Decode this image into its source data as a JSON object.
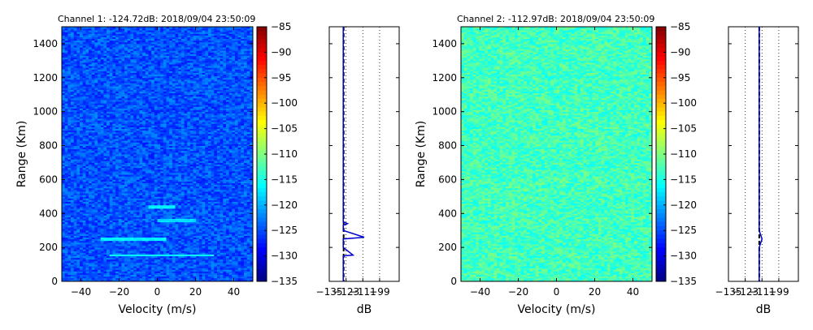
{
  "chart_data": [
    {
      "type": "heatmap",
      "title": "Channel 1: -124.72dB: 2018/09/04 23:50:09",
      "xlabel": "Velocity (m/s)",
      "ylabel": "Range (Km)",
      "xlim": [
        -50,
        50
      ],
      "ylim": [
        0,
        1500
      ],
      "xticks": [
        "−40",
        "−20",
        "0",
        "20",
        "40"
      ],
      "yticks": [
        "0",
        "200",
        "400",
        "600",
        "800",
        "1000",
        "1200",
        "1400"
      ],
      "colormap": "jet",
      "color_range": [
        -135,
        -85
      ],
      "colorbar_ticks": [
        "−85",
        "−90",
        "−95",
        "−100",
        "−105",
        "−110",
        "−115",
        "−120",
        "−125",
        "−130",
        "−135"
      ],
      "mean_level_db": -124.72,
      "features": [
        {
          "range_km": 440,
          "velocity_ms": [
            -5,
            10
          ],
          "level_db": -117
        },
        {
          "range_km": 360,
          "velocity_ms": [
            0,
            20
          ],
          "level_db": -118
        },
        {
          "range_km": 250,
          "velocity_ms": [
            -30,
            5
          ],
          "level_db": -117
        },
        {
          "range_km": 155,
          "velocity_ms": [
            -25,
            30
          ],
          "level_db": -116
        }
      ]
    },
    {
      "type": "line",
      "title": "",
      "xlabel": "dB",
      "ylabel": "",
      "xlim": [
        -135,
        -85
      ],
      "ylim": [
        0,
        1500
      ],
      "xticks": [
        "−135",
        "−123",
        "−111",
        "−99"
      ],
      "grid": "vertical dotted",
      "noise_floor_db": -124.72,
      "series": [
        {
          "ranges_km": [
            0,
            150,
            155,
            200,
            230,
            250,
            260,
            300,
            330,
            340,
            350,
            400,
            500,
            600,
            700,
            800,
            900,
            1000,
            1100,
            1200,
            1300,
            1400,
            1500
          ],
          "values": [
            -125,
            -125,
            -118,
            -125,
            -125,
            -125,
            -110,
            -125,
            -125,
            -122,
            -125,
            -125,
            -125,
            -125,
            -125,
            -125,
            -125,
            -125,
            -125,
            -125,
            -125,
            -125,
            -125
          ]
        }
      ]
    },
    {
      "type": "heatmap",
      "title": "Channel 2: -112.97dB: 2018/09/04 23:50:09",
      "xlabel": "Velocity (m/s)",
      "ylabel": "Range (Km)",
      "xlim": [
        -50,
        50
      ],
      "ylim": [
        0,
        1500
      ],
      "xticks": [
        "−40",
        "−20",
        "0",
        "20",
        "40"
      ],
      "yticks": [
        "0",
        "200",
        "400",
        "600",
        "800",
        "1000",
        "1200",
        "1400"
      ],
      "colormap": "jet",
      "color_range": [
        -135,
        -85
      ],
      "colorbar_ticks": [
        "−85",
        "−90",
        "−95",
        "−100",
        "−105",
        "−110",
        "−115",
        "−120",
        "−125",
        "−130",
        "−135"
      ],
      "mean_level_db": -112.97,
      "features": []
    },
    {
      "type": "line",
      "title": "",
      "xlabel": "dB",
      "ylabel": "",
      "xlim": [
        -135,
        -85
      ],
      "ylim": [
        0,
        1500
      ],
      "xticks": [
        "−135",
        "−123",
        "−111",
        "−99"
      ],
      "grid": "vertical dotted",
      "noise_floor_db": -112.97,
      "series": [
        {
          "ranges_km": [
            0,
            200,
            250,
            300,
            1500
          ],
          "values": [
            -113,
            -113,
            -111,
            -113,
            -113
          ]
        }
      ]
    }
  ]
}
